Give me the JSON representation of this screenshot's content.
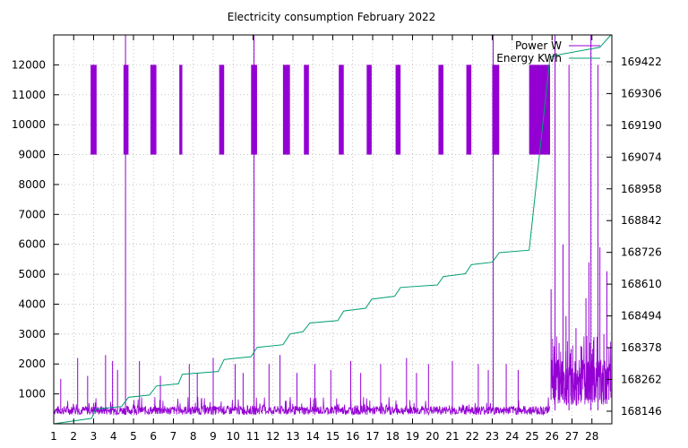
{
  "chart_data": {
    "type": "line",
    "title": "Electricity consumption February 2022",
    "xlabel": "",
    "ylabel": "",
    "y2label": "",
    "grid": true,
    "legend_position": "top-right",
    "xlim": [
      1,
      29
    ],
    "x_ticks": [
      "1",
      "2",
      "3",
      "4",
      "5",
      "6",
      "7",
      "8",
      "9",
      "10",
      "11",
      "12",
      "13",
      "14",
      "15",
      "16",
      "17",
      "18",
      "19",
      "20",
      "21",
      "22",
      "23",
      "24",
      "25",
      "26",
      "27",
      "28"
    ],
    "ylim": [
      0,
      13000
    ],
    "y_ticks": [
      "1000",
      "2000",
      "3000",
      "4000",
      "5000",
      "6000",
      "7000",
      "8000",
      "9000",
      "10000",
      "11000",
      "12000"
    ],
    "y2lim": [
      168100,
      169520
    ],
    "y2_ticks": [
      "168146",
      "168262",
      "168378",
      "168494",
      "168610",
      "168726",
      "168842",
      "168958",
      "169074",
      "169190",
      "169306",
      "169422"
    ],
    "colors": {
      "power": "#9400d3",
      "energy": "#009e73"
    },
    "series": [
      {
        "name": "Power W",
        "axis": "left",
        "baseline": 450,
        "high_blocks": [
          {
            "start": 2.85,
            "end": 3.15,
            "low": 9000,
            "high": 12000
          },
          {
            "start": 4.5,
            "end": 4.75,
            "low": 9000,
            "high": 12000
          },
          {
            "start": 5.85,
            "end": 6.15,
            "low": 9000,
            "high": 12000
          },
          {
            "start": 7.3,
            "end": 7.45,
            "low": 9000,
            "high": 12000
          },
          {
            "start": 9.3,
            "end": 9.55,
            "low": 9000,
            "high": 12000
          },
          {
            "start": 10.9,
            "end": 11.2,
            "low": 9000,
            "high": 12000
          },
          {
            "start": 12.5,
            "end": 12.85,
            "low": 9000,
            "high": 12000
          },
          {
            "start": 13.55,
            "end": 13.8,
            "low": 9000,
            "high": 12000
          },
          {
            "start": 15.3,
            "end": 15.55,
            "low": 9000,
            "high": 12000
          },
          {
            "start": 16.7,
            "end": 16.95,
            "low": 9000,
            "high": 12000
          },
          {
            "start": 18.15,
            "end": 18.4,
            "low": 9000,
            "high": 12000
          },
          {
            "start": 20.3,
            "end": 20.55,
            "low": 9000,
            "high": 12000
          },
          {
            "start": 21.7,
            "end": 21.95,
            "low": 9000,
            "high": 12000
          },
          {
            "start": 23.0,
            "end": 23.35,
            "low": 9000,
            "high": 12000
          },
          {
            "start": 24.85,
            "end": 25.9,
            "low": 9000,
            "high": 12000
          }
        ],
        "spikes": [
          {
            "x": 4.6,
            "value": 13000
          },
          {
            "x": 11.05,
            "value": 13000
          },
          {
            "x": 23.05,
            "value": 13000
          },
          {
            "x": 26.15,
            "value": 13000
          },
          {
            "x": 26.85,
            "value": 12000
          },
          {
            "x": 27.95,
            "value": 13000
          },
          {
            "x": 28.3,
            "value": 12000
          },
          {
            "x": 1.35,
            "value": 1500
          },
          {
            "x": 2.2,
            "value": 2200
          },
          {
            "x": 2.7,
            "value": 1600
          },
          {
            "x": 3.6,
            "value": 2300
          },
          {
            "x": 3.95,
            "value": 2100
          },
          {
            "x": 4.2,
            "value": 1800
          },
          {
            "x": 5.3,
            "value": 2100
          },
          {
            "x": 6.35,
            "value": 1600
          },
          {
            "x": 7.8,
            "value": 2000
          },
          {
            "x": 8.2,
            "value": 1700
          },
          {
            "x": 9.0,
            "value": 2200
          },
          {
            "x": 10.1,
            "value": 2000
          },
          {
            "x": 10.5,
            "value": 1700
          },
          {
            "x": 11.8,
            "value": 2000
          },
          {
            "x": 12.35,
            "value": 2300
          },
          {
            "x": 13.2,
            "value": 1700
          },
          {
            "x": 14.1,
            "value": 2000
          },
          {
            "x": 14.9,
            "value": 1800
          },
          {
            "x": 15.9,
            "value": 2100
          },
          {
            "x": 16.4,
            "value": 1700
          },
          {
            "x": 17.4,
            "value": 2000
          },
          {
            "x": 18.7,
            "value": 2200
          },
          {
            "x": 19.2,
            "value": 1700
          },
          {
            "x": 19.8,
            "value": 2000
          },
          {
            "x": 21.0,
            "value": 2100
          },
          {
            "x": 22.3,
            "value": 2000
          },
          {
            "x": 22.8,
            "value": 1800
          },
          {
            "x": 23.7,
            "value": 2000
          },
          {
            "x": 24.3,
            "value": 1800
          }
        ],
        "day26_28": [
          {
            "x": 25.95,
            "value": 4500
          },
          {
            "x": 26.1,
            "value": 1800
          },
          {
            "x": 26.35,
            "value": 2700
          },
          {
            "x": 26.55,
            "value": 6000
          },
          {
            "x": 26.7,
            "value": 3600
          },
          {
            "x": 26.95,
            "value": 2500
          },
          {
            "x": 27.2,
            "value": 3200
          },
          {
            "x": 27.45,
            "value": 2600
          },
          {
            "x": 27.7,
            "value": 4200
          },
          {
            "x": 27.85,
            "value": 5400
          },
          {
            "x": 28.1,
            "value": 2900
          },
          {
            "x": 28.4,
            "value": 5900
          },
          {
            "x": 28.6,
            "value": 3000
          },
          {
            "x": 28.75,
            "value": 5100
          },
          {
            "x": 28.85,
            "value": 2000
          }
        ]
      },
      {
        "name": "Energy KWh",
        "axis": "right",
        "x": [
          1,
          2.9,
          3.1,
          4.4,
          4.75,
          5.8,
          6.15,
          7.25,
          7.45,
          9.25,
          9.55,
          10.9,
          11.2,
          12.5,
          12.85,
          13.5,
          13.85,
          15.25,
          15.55,
          16.65,
          16.95,
          18.1,
          18.4,
          20.25,
          20.55,
          21.65,
          21.95,
          23.0,
          23.35,
          24.85,
          25.9,
          26.5,
          28.4,
          28.95
        ],
        "values": [
          168100,
          168120,
          168154,
          168163,
          168197,
          168205,
          168238,
          168246,
          168281,
          168291,
          168335,
          168345,
          168379,
          168389,
          168428,
          168436,
          168468,
          168477,
          168512,
          168522,
          168555,
          168566,
          168598,
          168607,
          168638,
          168648,
          168681,
          168690,
          168725,
          168734,
          169440,
          169450,
          169475,
          169520
        ]
      }
    ]
  }
}
